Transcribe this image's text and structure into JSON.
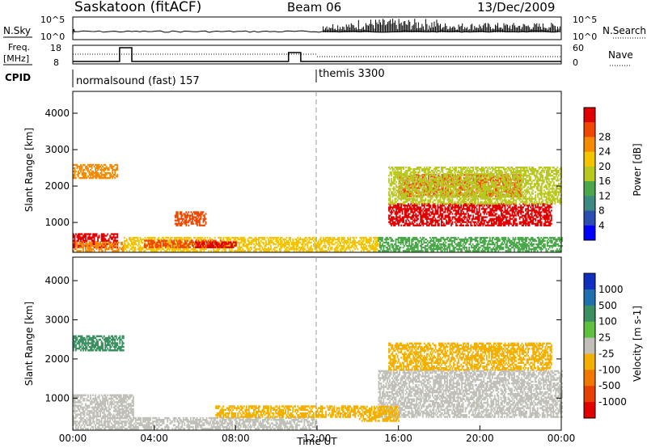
{
  "header": {
    "station": "Saskatoon (fitACF)",
    "beam": "Beam 06",
    "date": "13/Dec/2009"
  },
  "noise_panel": {
    "left_label": "N.Sky",
    "right_label": "N.Search",
    "left_ticks": [
      "10^5",
      "10^0"
    ],
    "right_ticks": [
      "10^5",
      "10^0"
    ]
  },
  "freq_panel": {
    "left_label_line1": "Freq.",
    "left_label_line2": "[MHz]",
    "right_label": "Nave",
    "left_ticks": [
      "18",
      "8"
    ],
    "right_ticks": [
      "60",
      "0"
    ]
  },
  "cpid_panel": {
    "label": "CPID",
    "modes": [
      {
        "name": "normalsound (fast) 157",
        "start": "00:00"
      },
      {
        "name": "themis 3300",
        "start": "12:00"
      }
    ]
  },
  "chart_data": [
    {
      "type": "heatmap",
      "name": "power",
      "ylabel": "Slant Range [km]",
      "ylim": [
        180,
        4600
      ],
      "yticks": [
        "1000",
        "2000",
        "3000",
        "4000"
      ],
      "xlim": [
        "00:00",
        "24:00"
      ],
      "colorbar_label": "Power [dB]",
      "colorbar_ticks": [
        "4",
        "8",
        "12",
        "16",
        "20",
        "24",
        "28"
      ],
      "colorbar_colors": [
        "#0000ff",
        "#2a4fb0",
        "#3c8a80",
        "#4aa84a",
        "#b8c820",
        "#f4c400",
        "#f58a00",
        "#f04800",
        "#e00000"
      ],
      "regions": [
        {
          "t0": 0.0,
          "t1": 2.2,
          "r0": 300,
          "r1": 700,
          "level": 28
        },
        {
          "t0": 0.0,
          "t1": 2.5,
          "r0": 200,
          "r1": 450,
          "level": 20
        },
        {
          "t0": 2.5,
          "t1": 15.0,
          "r0": 200,
          "r1": 600,
          "level": 16
        },
        {
          "t0": 3.5,
          "t1": 7.5,
          "r0": 300,
          "r1": 500,
          "level": 24
        },
        {
          "t0": 5.0,
          "t1": 6.5,
          "r0": 900,
          "r1": 1300,
          "level": 24
        },
        {
          "t0": 6.0,
          "t1": 8.0,
          "r0": 300,
          "r1": 450,
          "level": 28
        },
        {
          "t0": 0.0,
          "t1": 2.2,
          "r0": 2200,
          "r1": 2600,
          "level": 20
        },
        {
          "t0": 15.5,
          "t1": 23.5,
          "r0": 900,
          "r1": 1500,
          "level": 28
        },
        {
          "t0": 16.0,
          "t1": 22.0,
          "r0": 1700,
          "r1": 2300,
          "level": 24
        },
        {
          "t0": 15.5,
          "t1": 24.0,
          "r0": 1500,
          "r1": 2500,
          "level": 12
        },
        {
          "t0": 15.0,
          "t1": 24.0,
          "r0": 200,
          "r1": 600,
          "level": 8
        }
      ]
    },
    {
      "type": "heatmap",
      "name": "velocity",
      "ylabel": "Slant Range [km]",
      "ylim": [
        180,
        4600
      ],
      "yticks": [
        "1000",
        "2000",
        "3000",
        "4000"
      ],
      "xlim": [
        "00:00",
        "24:00"
      ],
      "xticks": [
        "00:00",
        "04:00",
        "08:00",
        "12:00",
        "16:00",
        "20:00",
        "00:00"
      ],
      "xlabel": "Time UT",
      "colorbar_label": "Velocity [m s-1]",
      "colorbar_ticks": [
        "1000",
        "500",
        "100",
        "25",
        "-25",
        "-100",
        "-500",
        "-1000"
      ],
      "colorbar_colors": [
        "#1030c0",
        "#2070b0",
        "#3a9060",
        "#60c040",
        "#c0c0b8",
        "#f4b000",
        "#f07800",
        "#e84000",
        "#e00000"
      ],
      "regions": [
        {
          "t0": 0.0,
          "t1": 3.0,
          "r0": 200,
          "r1": 1100,
          "level": 0
        },
        {
          "t0": 3.0,
          "t1": 12.0,
          "r0": 200,
          "r1": 500,
          "level": 0
        },
        {
          "t0": 7.0,
          "t1": 14.0,
          "r0": 500,
          "r1": 800,
          "level": -100
        },
        {
          "t0": 0.0,
          "t1": 2.5,
          "r0": 2200,
          "r1": 2600,
          "level": 100
        },
        {
          "t0": 15.5,
          "t1": 23.5,
          "r0": 1700,
          "r1": 2400,
          "level": -100
        },
        {
          "t0": 15.0,
          "t1": 24.0,
          "r0": 500,
          "r1": 1700,
          "level": 0
        },
        {
          "t0": 14.0,
          "t1": 16.0,
          "r0": 400,
          "r1": 800,
          "level": -100
        }
      ]
    }
  ]
}
